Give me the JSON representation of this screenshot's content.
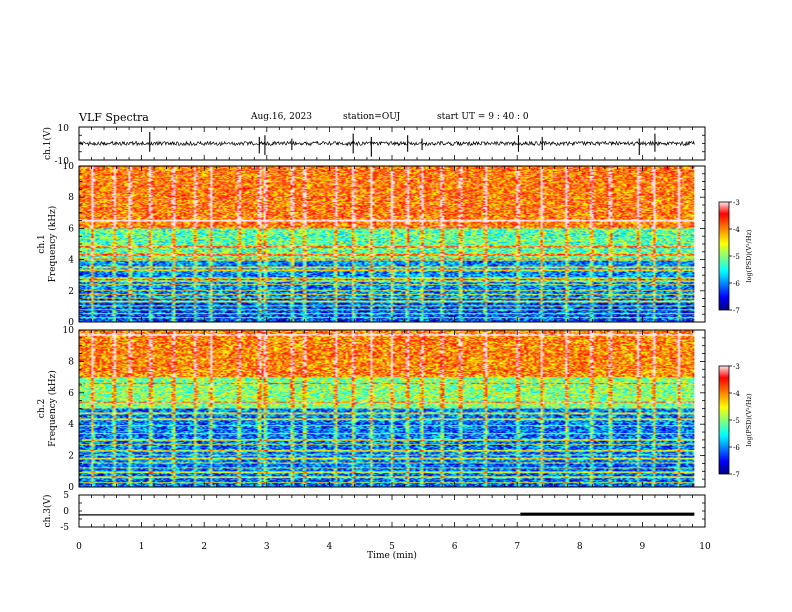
{
  "header": {
    "title": "VLF Spectra",
    "date": "Aug.16, 2023",
    "station": "station=OUJ",
    "start_ut": "start UT =   9 : 40 : 0"
  },
  "chart_data": [
    {
      "type": "line",
      "panel": "ch1-waveform",
      "ylabel": "ch.1(V)",
      "ylim": [
        -10,
        10
      ],
      "y_tick_labels": [
        "10",
        "-10"
      ],
      "x_unit": "min",
      "xlim": [
        0,
        10
      ],
      "data_xrange": [
        0,
        9.83
      ],
      "baseline": 0.0,
      "noise_amplitude": 1.2,
      "spikes": [
        {
          "x": 1.13,
          "y_min": -5,
          "y_max": 7
        },
        {
          "x": 2.88,
          "y_min": -6,
          "y_max": 4
        },
        {
          "x": 2.97,
          "y_min": -7,
          "y_max": 5
        },
        {
          "x": 3.4,
          "y_min": -4,
          "y_max": 3
        },
        {
          "x": 4.38,
          "y_min": -6,
          "y_max": 6
        },
        {
          "x": 4.67,
          "y_min": -8,
          "y_max": 4
        },
        {
          "x": 5.25,
          "y_min": -5,
          "y_max": 5
        },
        {
          "x": 5.48,
          "y_min": -4,
          "y_max": 3
        },
        {
          "x": 7.02,
          "y_min": -5,
          "y_max": 5
        },
        {
          "x": 7.4,
          "y_min": -4,
          "y_max": 4
        },
        {
          "x": 8.95,
          "y_min": -7,
          "y_max": 3
        },
        {
          "x": 9.2,
          "y_min": -5,
          "y_max": 6
        }
      ]
    },
    {
      "type": "heatmap",
      "panel": "ch1-spectrogram",
      "ylabel_lines": [
        "ch.1",
        "Frequency (kHz)"
      ],
      "ylim": [
        0,
        10
      ],
      "y_ticks": [
        0,
        2,
        4,
        6,
        8,
        10
      ],
      "xlim": [
        0,
        10
      ],
      "data_xrange": [
        0,
        9.83
      ],
      "colorbar": {
        "label": "log(PSD)(V²/Hz)",
        "range": [
          -7,
          -3
        ],
        "ticks": [
          "-3",
          "-4",
          "-5",
          "-6",
          "-7"
        ]
      },
      "description_levels": {
        "0-1.5 kHz": -6.3,
        "1.5-4 kHz": -6.0,
        "4-6 kHz": -5.2,
        "6-10 kHz": -3.9
      },
      "horizontal_lines_khz": [
        0.25,
        0.5,
        0.75,
        1.0,
        1.3,
        1.5,
        1.75,
        2.0,
        2.4,
        2.6,
        2.8,
        3.3,
        3.5,
        4.0,
        4.3,
        4.8,
        6.5
      ],
      "vertical_events_min": [
        0.2,
        0.55,
        0.8,
        1.13,
        1.5,
        1.85,
        2.1,
        2.55,
        2.88,
        2.97,
        3.4,
        3.6,
        4.1,
        4.38,
        4.67,
        5.0,
        5.25,
        5.48,
        5.8,
        6.1,
        6.5,
        7.02,
        7.4,
        7.8,
        8.2,
        8.5,
        8.95,
        9.2,
        9.6
      ]
    },
    {
      "type": "heatmap",
      "panel": "ch2-spectrogram",
      "ylabel_lines": [
        "ch.2",
        "Frequency (kHz)"
      ],
      "ylim": [
        0,
        10
      ],
      "y_ticks": [
        0,
        2,
        4,
        6,
        8,
        10
      ],
      "xlim": [
        0,
        10
      ],
      "data_xrange": [
        0,
        9.83
      ],
      "colorbar": {
        "label": "log(PSD)(V²/Hz)",
        "range": [
          -7,
          -3
        ],
        "ticks": [
          "-3",
          "-4",
          "-5",
          "-6",
          "-7"
        ]
      },
      "description_levels": {
        "0-1.5 kHz": -6.2,
        "1.5-5 kHz": -6.1,
        "5-7 kHz": -5.0,
        "7-10 kHz": -4.0
      },
      "horizontal_lines_khz": [
        0.25,
        0.6,
        0.9,
        1.2,
        1.5,
        1.8,
        2.0,
        2.3,
        2.7,
        3.0,
        3.4,
        3.9,
        4.3,
        4.7,
        5.4,
        6.6,
        9.7
      ],
      "vertical_events_min": [
        0.2,
        0.55,
        0.8,
        1.13,
        1.5,
        1.85,
        2.1,
        2.55,
        2.88,
        2.97,
        3.4,
        3.6,
        4.1,
        4.38,
        4.67,
        5.0,
        5.25,
        5.48,
        5.8,
        6.1,
        6.5,
        7.02,
        7.4,
        7.8,
        8.2,
        8.5,
        8.95,
        9.2,
        9.6
      ]
    },
    {
      "type": "line",
      "panel": "ch3-waveform",
      "ylabel": "ch.3(V)",
      "ylim": [
        -5,
        5
      ],
      "y_tick_labels": [
        "5",
        "0",
        "-5"
      ],
      "xlabel": "Time  (min)",
      "xlim": [
        0,
        10
      ],
      "x_tick_labels": [
        "0",
        "1",
        "2",
        "3",
        "4",
        "5",
        "6",
        "7",
        "8",
        "9",
        "10"
      ],
      "segments": [
        {
          "x": [
            0,
            7.05
          ],
          "y": -1.2
        },
        {
          "x": [
            7.05,
            9.83
          ],
          "y": -1.0
        }
      ]
    }
  ]
}
